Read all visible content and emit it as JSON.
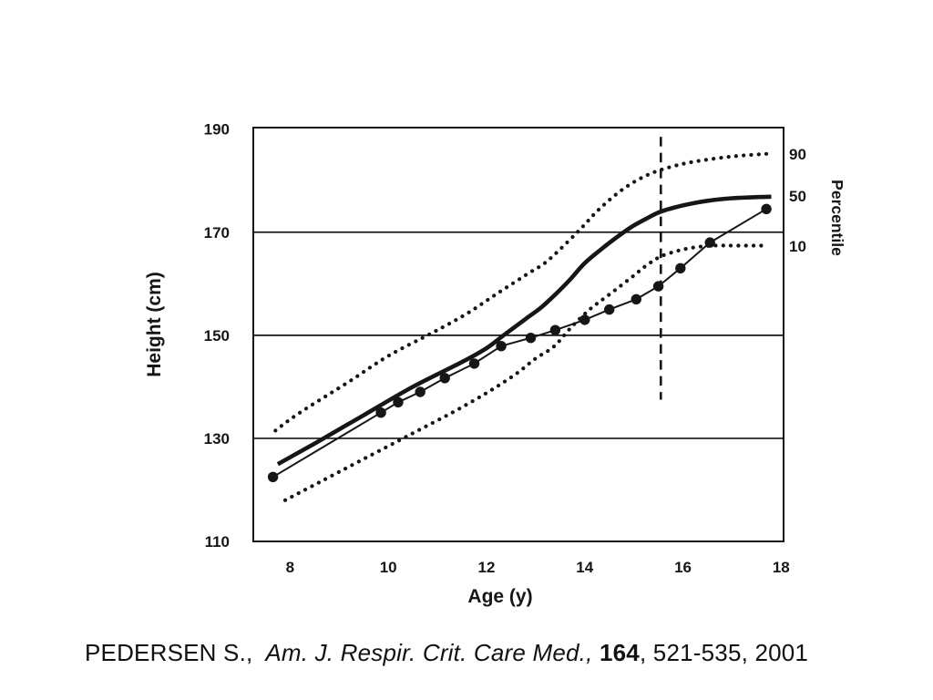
{
  "slide": {
    "background": "#ffffff"
  },
  "citation": {
    "author": "PEDERSEN S., ",
    "journal": " Am. J. Respir. Crit. Care Med., ",
    "volume": "164",
    "pages": ", 521-535, 2001"
  },
  "chart_data": {
    "type": "line",
    "title": "",
    "xlabel": "Age (y)",
    "ylabel": "Height (cm)",
    "right_axis_title": "Percentile",
    "xlim": [
      7.25,
      18.05
    ],
    "ylim": [
      110,
      190.3
    ],
    "xticks": [
      8,
      10,
      12,
      14,
      16,
      18
    ],
    "yticks": [
      190,
      170,
      150,
      130,
      110
    ],
    "gridlines_y": [
      130,
      150,
      170
    ],
    "grid": "horizontal gridlines at 130/150/170; closed plot border",
    "ink_color": "#161616",
    "legend_position": "right margin labels aligned with curve ends",
    "series": [
      {
        "name": "percentile-90",
        "style": "dotted",
        "end_label": "90",
        "x": [
          7.7,
          8.2,
          9.2,
          10.0,
          10.9,
          11.6,
          12.2,
          12.85,
          13.25,
          13.85,
          14.3,
          14.8,
          15.3,
          15.8,
          16.3,
          17.0,
          17.7
        ],
        "y": [
          131.5,
          135,
          141,
          146,
          150.5,
          154.2,
          158,
          162,
          164.5,
          170,
          174.5,
          178.5,
          181.2,
          182.8,
          183.8,
          184.7,
          185.2
        ]
      },
      {
        "name": "percentile-50",
        "style": "solid-thick",
        "end_label": "50",
        "x": [
          7.75,
          8.5,
          9.5,
          10.5,
          11.5,
          12.0,
          12.35,
          12.8,
          13.1,
          13.4,
          13.7,
          14.0,
          14.35,
          14.65,
          14.95,
          15.25,
          15.55,
          16.0,
          16.5,
          17.0,
          17.8
        ],
        "y": [
          125,
          129,
          134.5,
          140,
          144.8,
          147.5,
          150,
          153.2,
          155.3,
          157.9,
          160.8,
          164,
          166.8,
          169,
          171,
          172.6,
          174,
          175.2,
          176.1,
          176.6,
          176.9
        ]
      },
      {
        "name": "percentile-10",
        "style": "dotted",
        "end_label": "10",
        "x": [
          7.9,
          8.6,
          9.5,
          10.5,
          11.3,
          12.0,
          12.6,
          13.0,
          13.37,
          13.72,
          14.1,
          14.5,
          14.95,
          15.25,
          15.55,
          15.9,
          16.2,
          16.6,
          17.1,
          17.7
        ],
        "y": [
          118,
          121.5,
          126,
          131,
          135,
          138.8,
          142.5,
          145.5,
          147.8,
          151.5,
          155,
          157.9,
          161.2,
          163.5,
          165.3,
          166.4,
          167,
          167.4,
          167.4,
          167.4
        ]
      },
      {
        "name": "patient-height",
        "style": "thin line with filled circle markers",
        "end_label": "",
        "x": [
          7.65,
          9.85,
          10.2,
          10.65,
          11.15,
          11.75,
          12.3,
          12.9,
          13.4,
          14.0,
          14.5,
          15.05,
          15.5,
          15.95,
          16.55,
          17.7
        ],
        "y": [
          122.5,
          135,
          137,
          139,
          141.7,
          144.5,
          147.9,
          149.5,
          151,
          153,
          155,
          157,
          159.5,
          163,
          168,
          174.5
        ]
      }
    ],
    "annotations": [
      {
        "type": "dashed-vertical-line",
        "x": 15.55,
        "y_from": 137.5,
        "y_to": 188.5
      }
    ],
    "right_axis_labels": [
      {
        "text": "90",
        "at_height": 185.2
      },
      {
        "text": "50",
        "at_height": 177.0
      },
      {
        "text": "10",
        "at_height": 167.3
      }
    ]
  }
}
